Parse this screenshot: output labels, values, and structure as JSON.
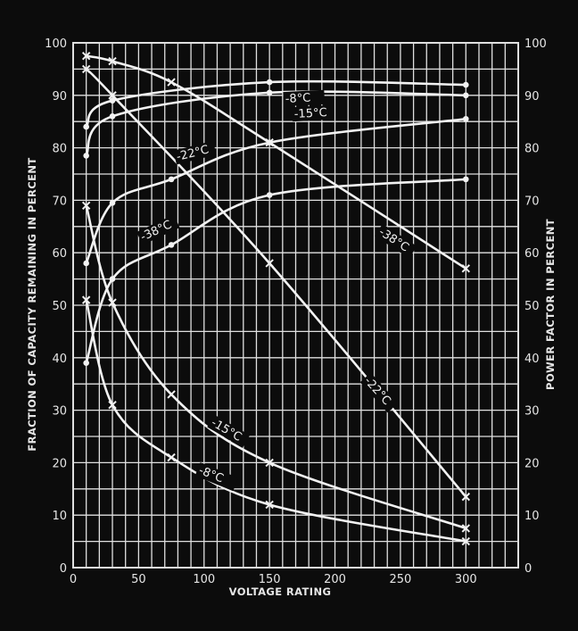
{
  "chart_data": {
    "type": "line",
    "xlabel": "VOLTAGE RATING",
    "ylabel_left": "FRACTION OF CAPACITY REMAINING IN PERCENT",
    "ylabel_right": "POWER FACTOR IN PERCENT",
    "xlim": [
      0,
      340
    ],
    "ylim": [
      0,
      100
    ],
    "x_ticks": [
      0,
      50,
      100,
      150,
      200,
      250,
      300
    ],
    "y_ticks": [
      0,
      10,
      20,
      30,
      40,
      50,
      60,
      70,
      80,
      90,
      100
    ],
    "grid": true,
    "colors": {
      "background": "#0c0c0c",
      "grid": "#e0e0e0",
      "curve": "#f2f2f2"
    },
    "series": [
      {
        "name": "-8°C",
        "metric": "capacity remaining",
        "marker": "dot",
        "x": [
          10,
          30,
          150,
          300
        ],
        "y": [
          84,
          89,
          92.5,
          92
        ]
      },
      {
        "name": "-15°C",
        "metric": "capacity remaining",
        "marker": "dot",
        "x": [
          10,
          30,
          150,
          300
        ],
        "y": [
          78.5,
          86,
          90.5,
          90
        ]
      },
      {
        "name": "-22°C",
        "metric": "capacity remaining",
        "marker": "dot",
        "x": [
          10,
          30,
          75,
          150,
          300
        ],
        "y": [
          58,
          69.5,
          74,
          81,
          85.5
        ]
      },
      {
        "name": "-38°C",
        "metric": "capacity remaining",
        "marker": "dot",
        "x": [
          10,
          30,
          75,
          150,
          300
        ],
        "y": [
          39,
          55,
          61.5,
          71,
          74
        ]
      },
      {
        "name": "-38°C",
        "metric": "power factor",
        "marker": "cross",
        "x": [
          10,
          30,
          75,
          150,
          300
        ],
        "y": [
          97.5,
          96.5,
          92.5,
          81,
          57
        ]
      },
      {
        "name": "-22°C",
        "metric": "power factor",
        "marker": "cross",
        "x": [
          10,
          30,
          150,
          300
        ],
        "y": [
          95,
          90,
          58,
          13.5
        ]
      },
      {
        "name": "-15°C",
        "metric": "power factor",
        "marker": "cross",
        "x": [
          10,
          30,
          75,
          150,
          300
        ],
        "y": [
          69,
          50.5,
          33,
          20,
          7.5
        ]
      },
      {
        "name": "-8°C",
        "metric": "power factor",
        "marker": "cross",
        "x": [
          10,
          30,
          75,
          150,
          300
        ],
        "y": [
          51,
          31,
          21,
          12,
          5
        ]
      }
    ]
  }
}
